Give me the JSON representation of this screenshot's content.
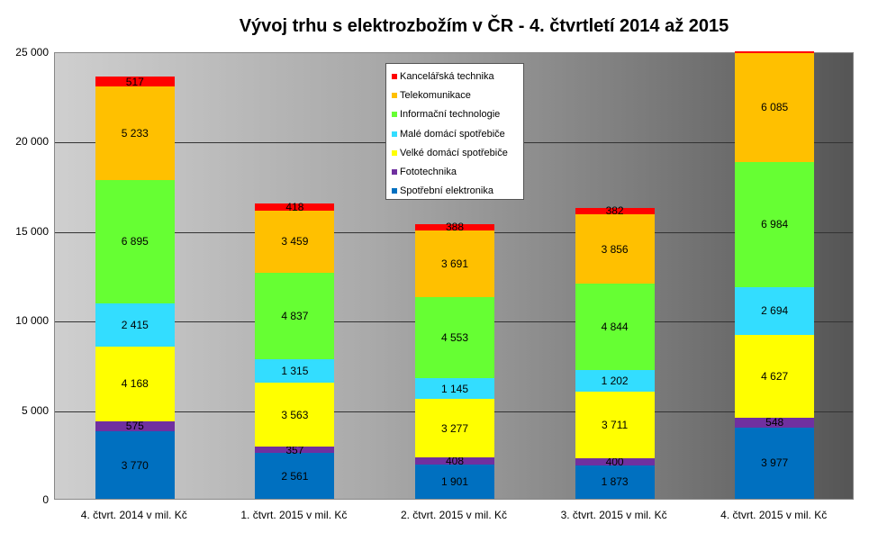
{
  "chart_data": {
    "type": "bar",
    "stacked": true,
    "title": "Vývoj trhu s elektrozbožím v ČR - 4. čtvrtletí 2014 až 2015",
    "xlabel": "",
    "ylabel": "",
    "ylim": [
      0,
      25000
    ],
    "yticks": [
      "0",
      "5 000",
      "10 000",
      "15 000",
      "20 000",
      "25 000"
    ],
    "ytick_values": [
      0,
      5000,
      10000,
      15000,
      20000,
      25000
    ],
    "categories": [
      "4. čtvrt. 2014 v mil. Kč",
      "1. čtvrt. 2015 v mil. Kč",
      "2. čtvrt. 2015 v mil. Kč",
      "3. čtvrt. 2015 v mil. Kč",
      "4. čtvrt. 2015 v mil. Kč"
    ],
    "legend_position": "top-center",
    "series": [
      {
        "name": "Spotřební elektronika",
        "color": "#0070c0",
        "values": [
          3770,
          2561,
          1901,
          1873,
          3977
        ],
        "labels": [
          "3 770",
          "2 561",
          "1 901",
          "1 873",
          "3 977"
        ]
      },
      {
        "name": "Fototechnika",
        "color": "#7030a0",
        "values": [
          575,
          357,
          408,
          400,
          548
        ],
        "labels": [
          "575",
          "357",
          "408",
          "400",
          "548"
        ]
      },
      {
        "name": "Velké domácí spotřebiče",
        "color": "#ffff00",
        "values": [
          4168,
          3563,
          3277,
          3711,
          4627
        ],
        "labels": [
          "4 168",
          "3 563",
          "3 277",
          "3 711",
          "4 627"
        ]
      },
      {
        "name": "Malé domácí spotřebiče",
        "color": "#33ddff",
        "values": [
          2415,
          1315,
          1145,
          1202,
          2694
        ],
        "labels": [
          "2 415",
          "1 315",
          "1 145",
          "1 202",
          "2 694"
        ]
      },
      {
        "name": "Informační technologie",
        "color": "#66ff33",
        "values": [
          6895,
          4837,
          4553,
          4844,
          6984
        ],
        "labels": [
          "6 895",
          "4 837",
          "4 553",
          "4 844",
          "6 984"
        ]
      },
      {
        "name": "Telekomunikace",
        "color": "#ffc000",
        "values": [
          5233,
          3459,
          3691,
          3856,
          6085
        ],
        "labels": [
          "5 233",
          "3 459",
          "3 691",
          "3 856",
          "6 085"
        ]
      },
      {
        "name": "Kancelářská technika",
        "color": "#ff0000",
        "values": [
          517,
          418,
          388,
          382,
          null
        ],
        "labels": [
          "517",
          "418",
          "388",
          "382",
          null
        ]
      }
    ]
  }
}
